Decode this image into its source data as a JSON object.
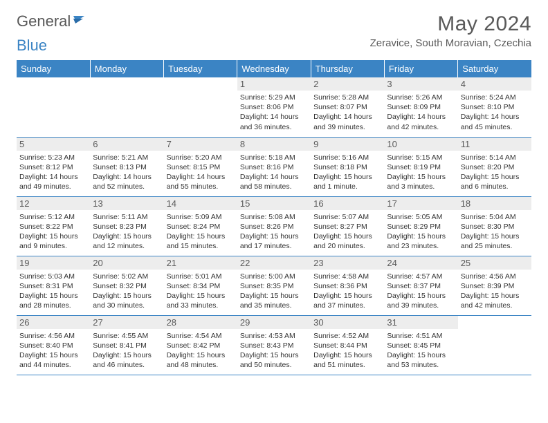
{
  "brand": {
    "part1": "General",
    "part2": "Blue"
  },
  "title": "May 2024",
  "location": "Zeravice, South Moravian, Czechia",
  "colors": {
    "accent": "#3b84c4",
    "header_text": "#5a5a5a",
    "daybar_bg": "#ededed",
    "body_text": "#333333",
    "bg": "#ffffff"
  },
  "weekdays": [
    "Sunday",
    "Monday",
    "Tuesday",
    "Wednesday",
    "Thursday",
    "Friday",
    "Saturday"
  ],
  "weeks": [
    [
      {
        "n": "",
        "sr": "",
        "ss": "",
        "dl": ""
      },
      {
        "n": "",
        "sr": "",
        "ss": "",
        "dl": ""
      },
      {
        "n": "",
        "sr": "",
        "ss": "",
        "dl": ""
      },
      {
        "n": "1",
        "sr": "Sunrise: 5:29 AM",
        "ss": "Sunset: 8:06 PM",
        "dl": "Daylight: 14 hours and 36 minutes."
      },
      {
        "n": "2",
        "sr": "Sunrise: 5:28 AM",
        "ss": "Sunset: 8:07 PM",
        "dl": "Daylight: 14 hours and 39 minutes."
      },
      {
        "n": "3",
        "sr": "Sunrise: 5:26 AM",
        "ss": "Sunset: 8:09 PM",
        "dl": "Daylight: 14 hours and 42 minutes."
      },
      {
        "n": "4",
        "sr": "Sunrise: 5:24 AM",
        "ss": "Sunset: 8:10 PM",
        "dl": "Daylight: 14 hours and 45 minutes."
      }
    ],
    [
      {
        "n": "5",
        "sr": "Sunrise: 5:23 AM",
        "ss": "Sunset: 8:12 PM",
        "dl": "Daylight: 14 hours and 49 minutes."
      },
      {
        "n": "6",
        "sr": "Sunrise: 5:21 AM",
        "ss": "Sunset: 8:13 PM",
        "dl": "Daylight: 14 hours and 52 minutes."
      },
      {
        "n": "7",
        "sr": "Sunrise: 5:20 AM",
        "ss": "Sunset: 8:15 PM",
        "dl": "Daylight: 14 hours and 55 minutes."
      },
      {
        "n": "8",
        "sr": "Sunrise: 5:18 AM",
        "ss": "Sunset: 8:16 PM",
        "dl": "Daylight: 14 hours and 58 minutes."
      },
      {
        "n": "9",
        "sr": "Sunrise: 5:16 AM",
        "ss": "Sunset: 8:18 PM",
        "dl": "Daylight: 15 hours and 1 minute."
      },
      {
        "n": "10",
        "sr": "Sunrise: 5:15 AM",
        "ss": "Sunset: 8:19 PM",
        "dl": "Daylight: 15 hours and 3 minutes."
      },
      {
        "n": "11",
        "sr": "Sunrise: 5:14 AM",
        "ss": "Sunset: 8:20 PM",
        "dl": "Daylight: 15 hours and 6 minutes."
      }
    ],
    [
      {
        "n": "12",
        "sr": "Sunrise: 5:12 AM",
        "ss": "Sunset: 8:22 PM",
        "dl": "Daylight: 15 hours and 9 minutes."
      },
      {
        "n": "13",
        "sr": "Sunrise: 5:11 AM",
        "ss": "Sunset: 8:23 PM",
        "dl": "Daylight: 15 hours and 12 minutes."
      },
      {
        "n": "14",
        "sr": "Sunrise: 5:09 AM",
        "ss": "Sunset: 8:24 PM",
        "dl": "Daylight: 15 hours and 15 minutes."
      },
      {
        "n": "15",
        "sr": "Sunrise: 5:08 AM",
        "ss": "Sunset: 8:26 PM",
        "dl": "Daylight: 15 hours and 17 minutes."
      },
      {
        "n": "16",
        "sr": "Sunrise: 5:07 AM",
        "ss": "Sunset: 8:27 PM",
        "dl": "Daylight: 15 hours and 20 minutes."
      },
      {
        "n": "17",
        "sr": "Sunrise: 5:05 AM",
        "ss": "Sunset: 8:29 PM",
        "dl": "Daylight: 15 hours and 23 minutes."
      },
      {
        "n": "18",
        "sr": "Sunrise: 5:04 AM",
        "ss": "Sunset: 8:30 PM",
        "dl": "Daylight: 15 hours and 25 minutes."
      }
    ],
    [
      {
        "n": "19",
        "sr": "Sunrise: 5:03 AM",
        "ss": "Sunset: 8:31 PM",
        "dl": "Daylight: 15 hours and 28 minutes."
      },
      {
        "n": "20",
        "sr": "Sunrise: 5:02 AM",
        "ss": "Sunset: 8:32 PM",
        "dl": "Daylight: 15 hours and 30 minutes."
      },
      {
        "n": "21",
        "sr": "Sunrise: 5:01 AM",
        "ss": "Sunset: 8:34 PM",
        "dl": "Daylight: 15 hours and 33 minutes."
      },
      {
        "n": "22",
        "sr": "Sunrise: 5:00 AM",
        "ss": "Sunset: 8:35 PM",
        "dl": "Daylight: 15 hours and 35 minutes."
      },
      {
        "n": "23",
        "sr": "Sunrise: 4:58 AM",
        "ss": "Sunset: 8:36 PM",
        "dl": "Daylight: 15 hours and 37 minutes."
      },
      {
        "n": "24",
        "sr": "Sunrise: 4:57 AM",
        "ss": "Sunset: 8:37 PM",
        "dl": "Daylight: 15 hours and 39 minutes."
      },
      {
        "n": "25",
        "sr": "Sunrise: 4:56 AM",
        "ss": "Sunset: 8:39 PM",
        "dl": "Daylight: 15 hours and 42 minutes."
      }
    ],
    [
      {
        "n": "26",
        "sr": "Sunrise: 4:56 AM",
        "ss": "Sunset: 8:40 PM",
        "dl": "Daylight: 15 hours and 44 minutes."
      },
      {
        "n": "27",
        "sr": "Sunrise: 4:55 AM",
        "ss": "Sunset: 8:41 PM",
        "dl": "Daylight: 15 hours and 46 minutes."
      },
      {
        "n": "28",
        "sr": "Sunrise: 4:54 AM",
        "ss": "Sunset: 8:42 PM",
        "dl": "Daylight: 15 hours and 48 minutes."
      },
      {
        "n": "29",
        "sr": "Sunrise: 4:53 AM",
        "ss": "Sunset: 8:43 PM",
        "dl": "Daylight: 15 hours and 50 minutes."
      },
      {
        "n": "30",
        "sr": "Sunrise: 4:52 AM",
        "ss": "Sunset: 8:44 PM",
        "dl": "Daylight: 15 hours and 51 minutes."
      },
      {
        "n": "31",
        "sr": "Sunrise: 4:51 AM",
        "ss": "Sunset: 8:45 PM",
        "dl": "Daylight: 15 hours and 53 minutes."
      },
      {
        "n": "",
        "sr": "",
        "ss": "",
        "dl": ""
      }
    ]
  ]
}
